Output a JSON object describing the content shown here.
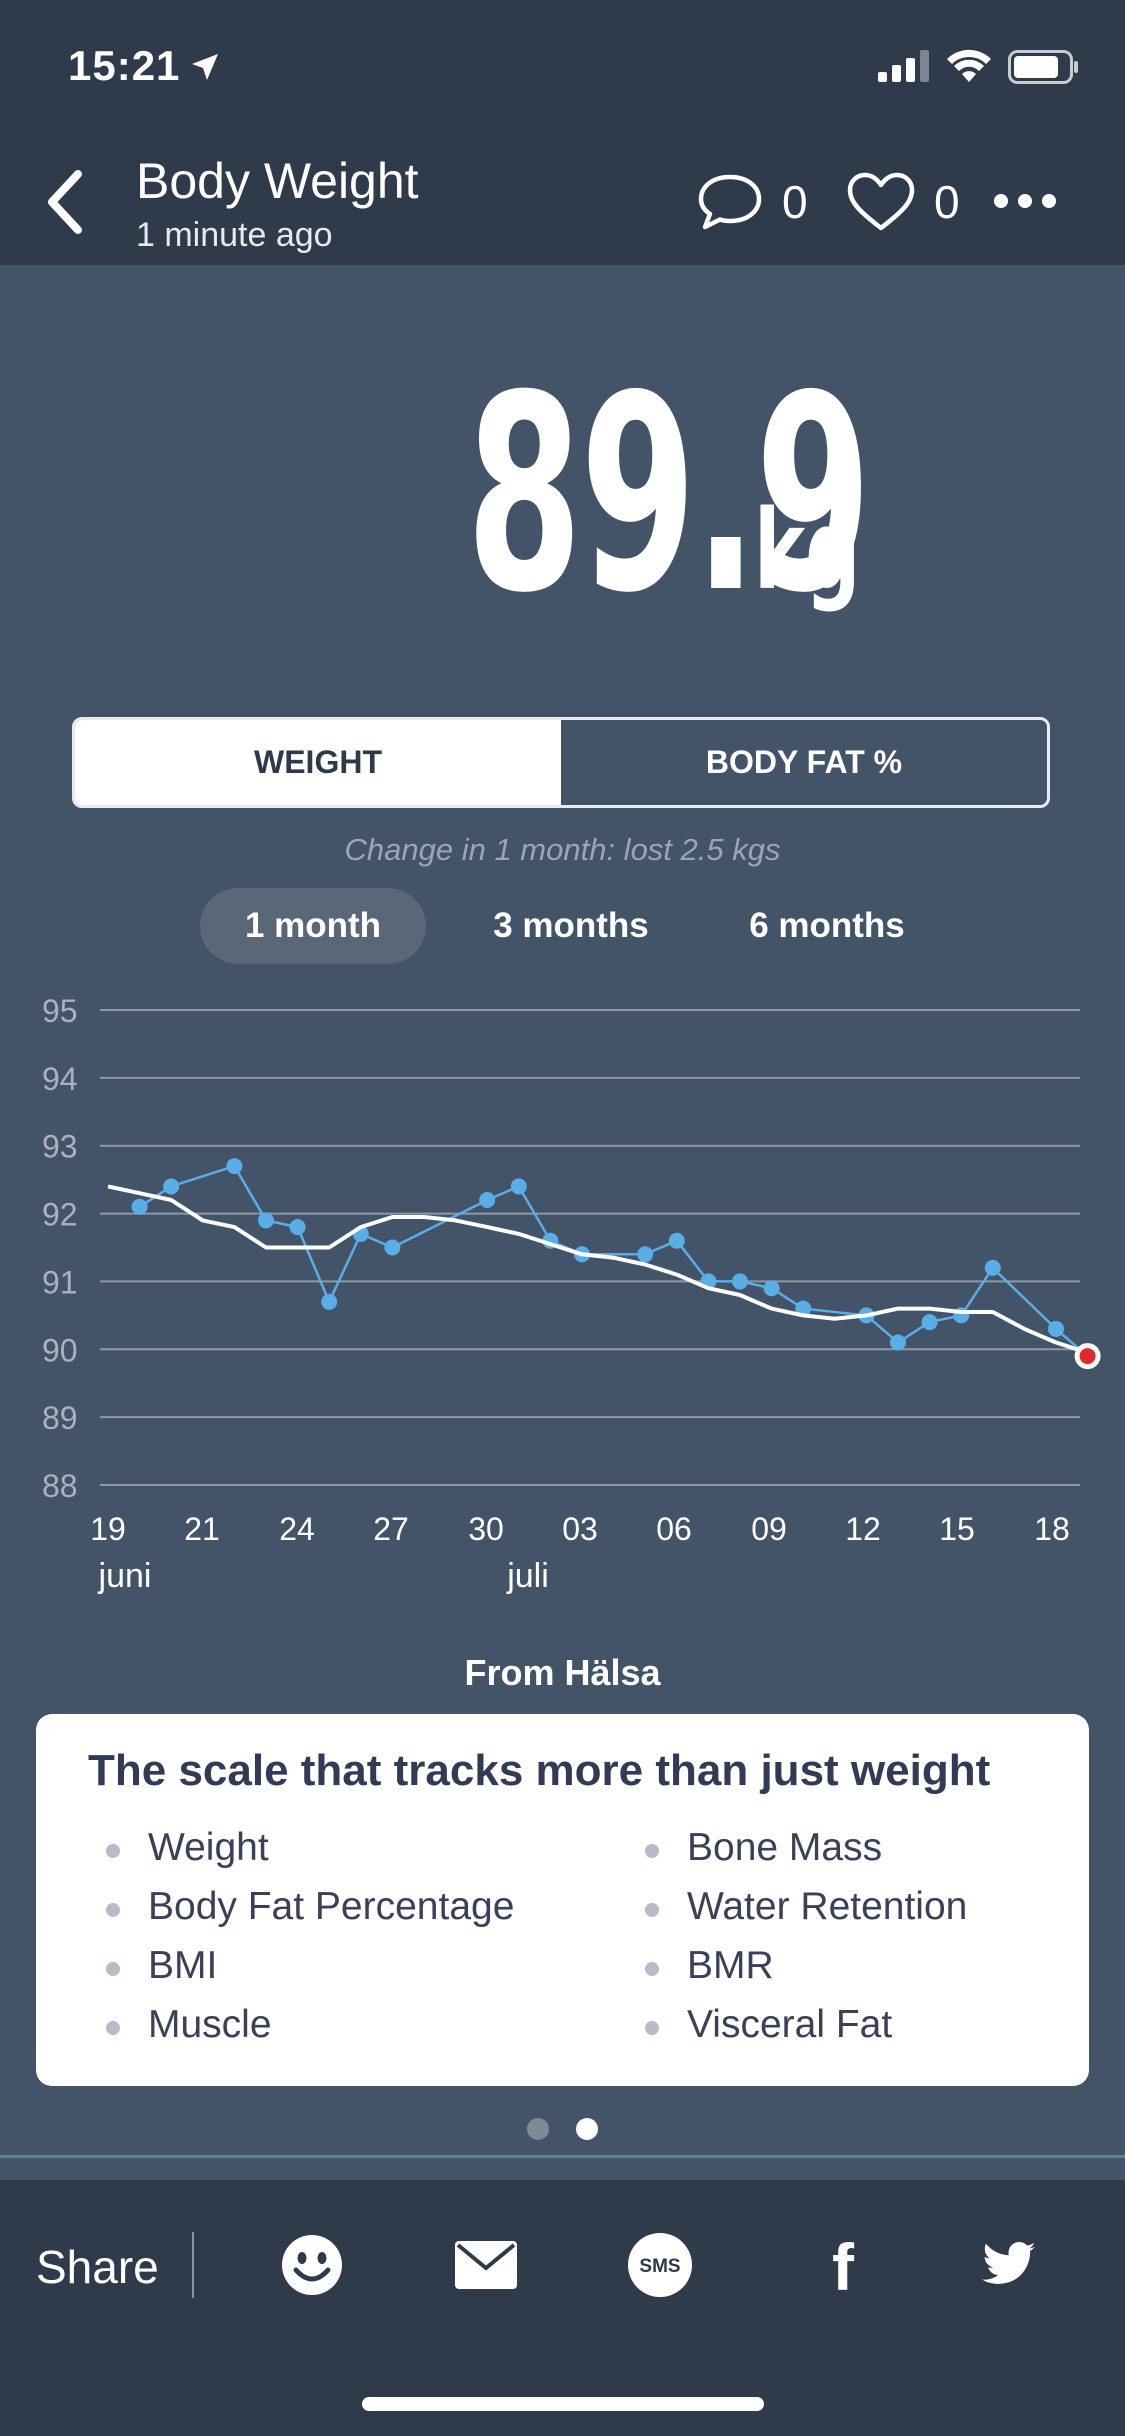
{
  "status_bar": {
    "time": "15:21"
  },
  "header": {
    "title": "Body Weight",
    "subtitle": "1 minute ago",
    "comment_count": "0",
    "like_count": "0"
  },
  "reading": {
    "value": "89.9",
    "unit": "kg"
  },
  "tabs": [
    {
      "label": "WEIGHT",
      "active": true
    },
    {
      "label": "BODY FAT %",
      "active": false
    }
  ],
  "change_note": "Change in 1 month: lost 2.5 kgs",
  "ranges": [
    {
      "label": "1 month",
      "active": true
    },
    {
      "label": "3 months",
      "active": false
    },
    {
      "label": "6 months",
      "active": false
    }
  ],
  "chart_data": {
    "type": "line",
    "title": "",
    "xlabel": "",
    "ylabel": "",
    "ylim": [
      88,
      95
    ],
    "yticks": [
      95,
      94,
      93,
      92,
      91,
      90,
      89,
      88
    ],
    "x_tick_labels": [
      "19",
      "21",
      "24",
      "27",
      "30",
      "03",
      "06",
      "09",
      "12",
      "15",
      "18"
    ],
    "x_month_labels": [
      "juni",
      "juli"
    ],
    "grid": true,
    "series": [
      {
        "color": "#5aaee8",
        "x": [
          "2019-06-20",
          "2019-06-21",
          "2019-06-23",
          "2019-06-24",
          "2019-06-25",
          "2019-06-26",
          "2019-06-27",
          "2019-06-28",
          "2019-07-01",
          "2019-07-02",
          "2019-07-03",
          "2019-07-04",
          "2019-07-06",
          "2019-07-07",
          "2019-07-08",
          "2019-07-09",
          "2019-07-10",
          "2019-07-11",
          "2019-07-13",
          "2019-07-14",
          "2019-07-15",
          "2019-07-16",
          "2019-07-17",
          "2019-07-19",
          "2019-07-20"
        ],
        "values": [
          92.1,
          92.4,
          92.7,
          91.9,
          91.8,
          90.7,
          91.7,
          91.5,
          92.2,
          92.4,
          91.6,
          91.4,
          91.4,
          91.6,
          91.0,
          91.0,
          90.9,
          90.6,
          90.5,
          90.1,
          90.4,
          90.5,
          91.2,
          90.3,
          89.9
        ]
      },
      {
        "color": "#ffffff",
        "x": [
          "2019-06-19",
          "2019-06-20",
          "2019-06-21",
          "2019-06-22",
          "2019-06-23",
          "2019-06-24",
          "2019-06-25",
          "2019-06-26",
          "2019-06-27",
          "2019-06-28",
          "2019-06-29",
          "2019-06-30",
          "2019-07-01",
          "2019-07-02",
          "2019-07-03",
          "2019-07-04",
          "2019-07-05",
          "2019-07-06",
          "2019-07-07",
          "2019-07-08",
          "2019-07-09",
          "2019-07-10",
          "2019-07-11",
          "2019-07-12",
          "2019-07-13",
          "2019-07-14",
          "2019-07-15",
          "2019-07-16",
          "2019-07-17",
          "2019-07-18",
          "2019-07-19",
          "2019-07-20"
        ],
        "values": [
          92.4,
          92.3,
          92.2,
          91.9,
          91.8,
          91.5,
          91.5,
          91.5,
          91.8,
          91.95,
          91.95,
          91.9,
          91.8,
          91.7,
          91.55,
          91.4,
          91.35,
          91.25,
          91.1,
          90.9,
          90.8,
          90.6,
          90.5,
          90.45,
          90.5,
          90.6,
          90.6,
          90.55,
          90.55,
          90.3,
          90.1,
          89.95
        ]
      }
    ],
    "latest_point": {
      "x": "2019-07-20",
      "value": 89.9,
      "color": "#e02a2a"
    }
  },
  "source_label": "From Hälsa",
  "promo": {
    "title": "The scale that tracks more than just weight",
    "features_left": [
      "Weight",
      "Body Fat Percentage",
      "BMI",
      "Muscle"
    ],
    "features_right": [
      "Bone Mass",
      "Water Retention",
      "BMR",
      "Visceral Fat"
    ]
  },
  "pager": {
    "count": 2,
    "active_index": 1
  },
  "share": {
    "label": "Share",
    "icons": [
      "emoji-icon",
      "mail-icon",
      "sms-icon",
      "facebook-icon",
      "twitter-icon"
    ],
    "sms_text": "SMS",
    "facebook_text": "f"
  }
}
